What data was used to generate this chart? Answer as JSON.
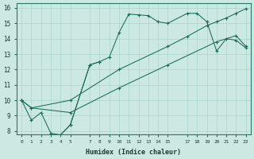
{
  "xlabel": "Humidex (Indice chaleur)",
  "xlim": [
    -0.5,
    23.5
  ],
  "ylim": [
    7.8,
    16.3
  ],
  "yticks": [
    8,
    9,
    10,
    11,
    12,
    13,
    14,
    15,
    16
  ],
  "xtick_vals": [
    0,
    1,
    2,
    3,
    4,
    5,
    7,
    8,
    9,
    10,
    11,
    12,
    13,
    14,
    15,
    17,
    18,
    19,
    20,
    21,
    22,
    23
  ],
  "xtick_labels": [
    "0",
    "1",
    "2",
    "3",
    "4",
    "5",
    "7",
    "8",
    "9",
    "10",
    "11",
    "12",
    "13",
    "14",
    "15",
    "17",
    "18",
    "19",
    "20",
    "21",
    "22",
    "23"
  ],
  "bg_color": "#cce8e2",
  "grid_color": "#aad4cc",
  "line_color": "#1a6b5a",
  "line1_x": [
    0,
    1,
    2,
    3,
    4,
    5,
    7,
    8,
    9,
    10,
    11,
    12,
    13,
    14,
    15,
    17,
    18,
    19,
    20,
    21,
    22,
    23
  ],
  "line1_y": [
    10.0,
    8.7,
    9.2,
    7.85,
    7.75,
    8.4,
    12.3,
    12.5,
    12.8,
    14.4,
    15.6,
    15.55,
    15.5,
    15.1,
    15.0,
    15.65,
    15.65,
    15.1,
    13.2,
    14.0,
    13.9,
    13.4
  ],
  "line2_x": [
    0,
    1,
    5,
    10,
    15,
    17,
    19,
    20,
    21,
    22,
    23
  ],
  "line2_y": [
    10.0,
    9.5,
    10.0,
    12.0,
    13.5,
    14.15,
    14.85,
    15.1,
    15.35,
    15.65,
    15.95
  ],
  "line3_x": [
    0,
    1,
    5,
    10,
    15,
    20,
    22,
    23
  ],
  "line3_y": [
    10.0,
    9.5,
    9.2,
    10.8,
    12.3,
    13.8,
    14.2,
    13.5
  ],
  "line4_x": [
    4,
    5,
    7,
    8
  ],
  "line4_y": [
    7.75,
    8.4,
    12.3,
    12.5
  ]
}
